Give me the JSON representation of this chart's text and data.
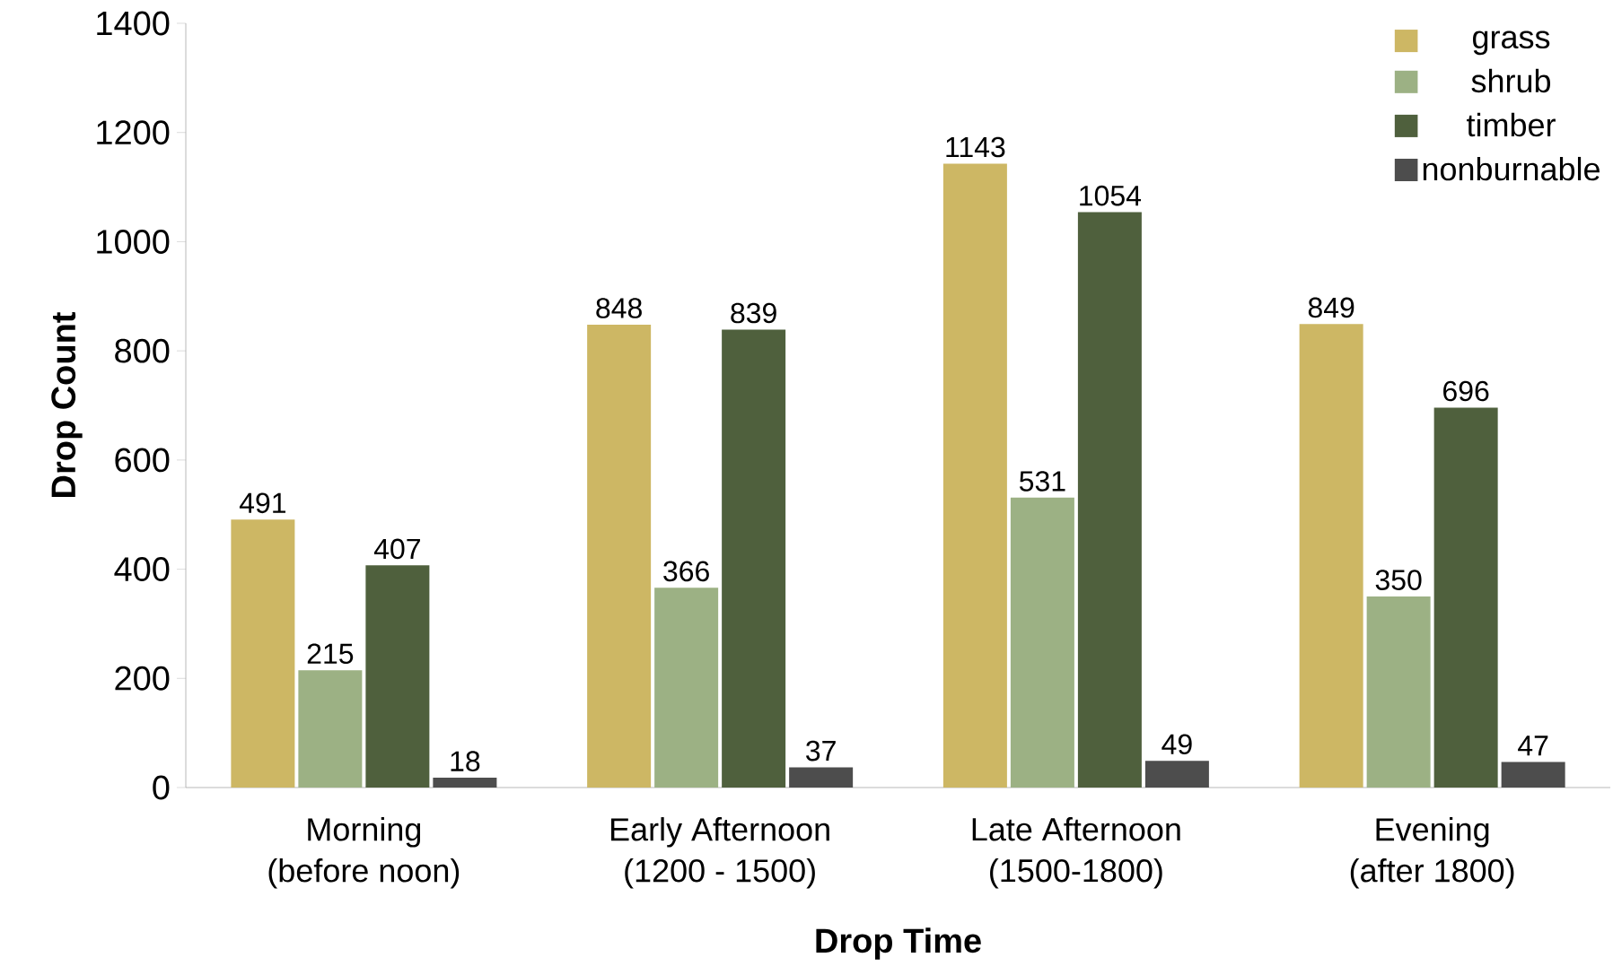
{
  "chart_data": {
    "type": "bar",
    "xlabel": "Drop Time",
    "ylabel": "Drop Count",
    "categories": [
      "Morning (before noon)",
      "Early Afternoon (1200 - 1500)",
      "Late Afternoon (1500-1800)",
      "Evening (after 1800)"
    ],
    "series": [
      {
        "name": "grass",
        "color": "#cdb764",
        "values": [
          491,
          848,
          1143,
          849
        ]
      },
      {
        "name": "shrub",
        "color": "#9cb184",
        "values": [
          215,
          366,
          531,
          350
        ]
      },
      {
        "name": "timber",
        "color": "#4f603d",
        "values": [
          407,
          839,
          1054,
          696
        ]
      },
      {
        "name": "nonburnable",
        "color": "#4d4d4d",
        "values": [
          18,
          37,
          49,
          47
        ]
      }
    ],
    "ylim": [
      0,
      1400
    ],
    "yticks": [
      0,
      200,
      400,
      600,
      800,
      1000,
      1200,
      1400
    ],
    "data_labels": true,
    "legend": "top right",
    "grid": false
  }
}
